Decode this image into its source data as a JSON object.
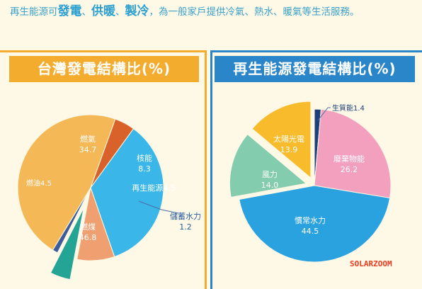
{
  "intro": {
    "part1": "再生能源可",
    "hl1": "發電",
    "sep1": "、",
    "hl2": "供暖",
    "sep2": "、",
    "hl3": "製冷",
    "part2": "，為一般家戶提供冷氣、熱水、暖氣等生活服務。"
  },
  "chart_data": [
    {
      "type": "pie",
      "title": "台灣發電結構比(%)",
      "slices": [
        {
          "label": "燃氣",
          "value": 34.7,
          "color": "#3ab6e8"
        },
        {
          "label": "核能",
          "value": 8.3,
          "color": "#f0a070"
        },
        {
          "label": "再生能源",
          "value": 4.5,
          "color": "#23a495"
        },
        {
          "label": "儲蓄水力",
          "value": 1.2,
          "color": "#3c5c9a"
        },
        {
          "label": "燃煤",
          "value": 46.8,
          "color": "#f5b857"
        },
        {
          "label": "燃油",
          "value": 4.5,
          "color": "#d9622b"
        }
      ]
    },
    {
      "type": "pie",
      "title": "再生能源發電結構比(%)",
      "slices": [
        {
          "label": "生質能",
          "value": 1.4,
          "color": "#1d3f7a"
        },
        {
          "label": "廢棄物能",
          "value": 26.2,
          "color": "#f2a0bd"
        },
        {
          "label": "慣常水力",
          "value": 44.5,
          "color": "#2aa2e0"
        },
        {
          "label": "風力",
          "value": 14.0,
          "color": "#84ccae"
        },
        {
          "label": "太陽光電",
          "value": 13.9,
          "color": "#f7bb2c"
        }
      ]
    }
  ],
  "watermark": "SOLARZOOM"
}
